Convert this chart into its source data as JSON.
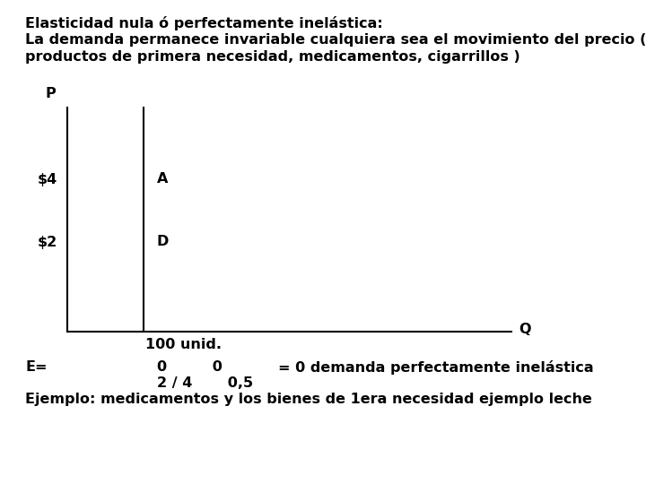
{
  "title_line1": "Elasticidad nula ó perfectamente inelástica:",
  "title_line2": "La demanda permanece invariable cualquiera sea el movimiento del precio (",
  "title_line3": "productos de primera necesidad, medicamentos, cigarrillos )",
  "p_label": "P",
  "q_label": "Q",
  "price_4_label": "$4",
  "price_2_label": "$2",
  "point_a_label": "A",
  "point_d_label": "D",
  "q_label_pos": "100 unid.",
  "formula_e": "E=",
  "formula_nums_top": "0         0",
  "formula_eq": "= 0 demanda perfectamente inelástica",
  "formula_nums_bot": "2 / 4       0,5",
  "example_line": "Ejemplo: medicamentos y los bienes de 1era necesidad ejemplo leche",
  "bg_color": "#ffffff",
  "text_color": "#000000",
  "font_size": 11.5,
  "font_family": "DejaVu Sans"
}
